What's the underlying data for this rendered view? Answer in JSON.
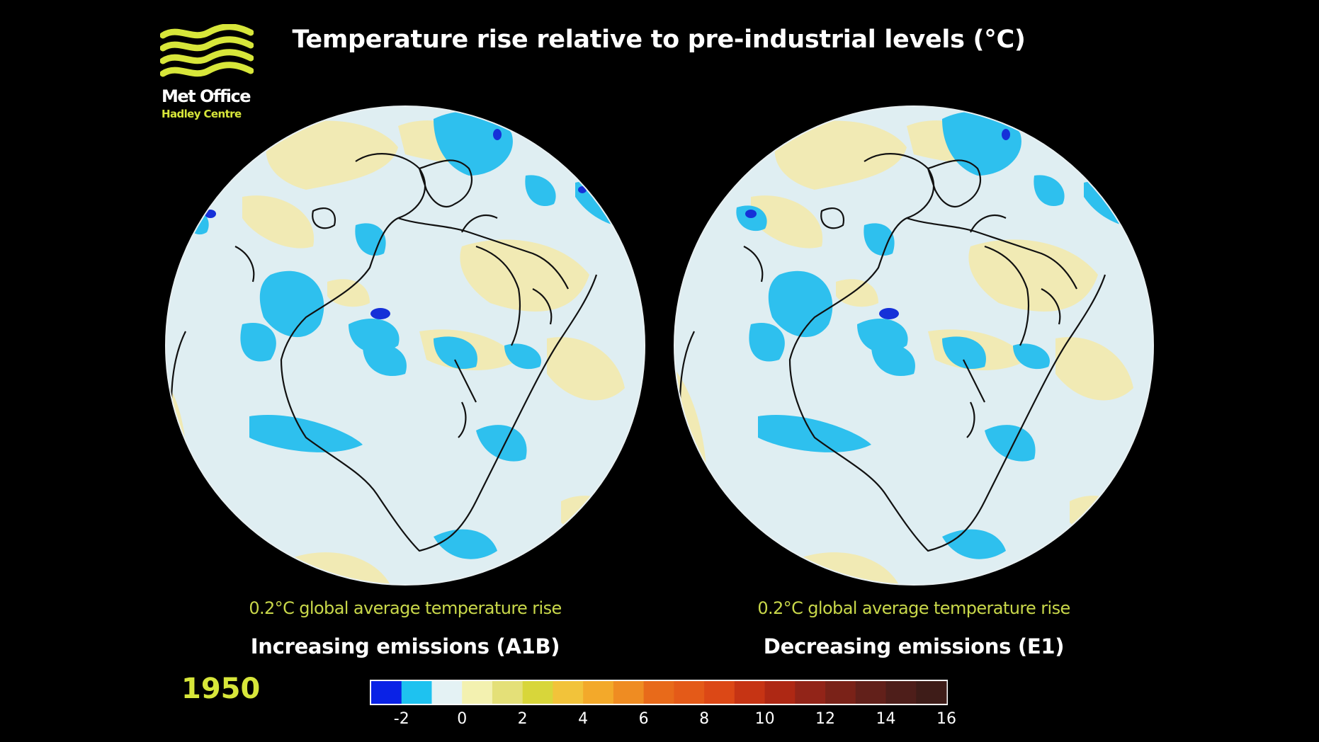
{
  "page": {
    "title": "Temperature rise relative to pre-industrial levels (°C)",
    "year": "1950"
  },
  "logo": {
    "name": "Met Office",
    "subtitle": "Hadley Centre",
    "brand_color": "#d7e63a",
    "icon": "wave-stripes-logo"
  },
  "panels": [
    {
      "stat": "0.2°C global average temperature rise",
      "scenario": "Increasing emissions (A1B)"
    },
    {
      "stat": "0.2°C global average temperature rise",
      "scenario": "Decreasing emissions (E1)"
    }
  ],
  "legend": {
    "ticks": [
      "-2",
      "0",
      "2",
      "4",
      "6",
      "8",
      "10",
      "12",
      "14",
      "16"
    ],
    "colors": [
      "#0a22e6",
      "#1ec2f0",
      "#e4f2f4",
      "#f3f1b0",
      "#e4e078",
      "#d8d63a",
      "#f2c33a",
      "#f3a92a",
      "#ef8c22",
      "#e86a1a",
      "#e45a18",
      "#dc4816",
      "#c63414",
      "#ae2814",
      "#922418",
      "#7a2218",
      "#62201a",
      "#4e1e1a",
      "#3e1c18"
    ]
  },
  "map_colors": {
    "background": "#000000",
    "neutral": "#dfeef2",
    "light_blue": "#2ec0ee",
    "dark_blue": "#1530d8",
    "light_yellow": "#f1eab4",
    "coastline": "#111111"
  }
}
